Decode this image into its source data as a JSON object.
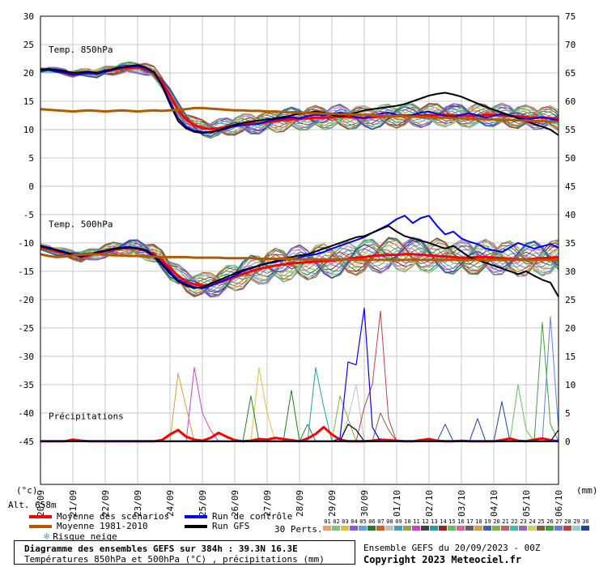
{
  "chart_data": {
    "type": "line",
    "title": "Diagramme des ensembles GEFS sur 384h : 39.3N 16.3E",
    "subtitle": "Températures 850hPa et 500hPa (°C) , précipitations (mm)",
    "run_info": "Ensemble GEFS du 20/09/2023 - 00Z",
    "copyright": "Copyright 2023 Meteociel.fr",
    "altitude_label": "Alt. 658m",
    "left_axis_unit": "(°c)",
    "right_axis_unit": "(mm)",
    "x_dates": [
      "20/09",
      "21/09",
      "22/09",
      "23/09",
      "24/09",
      "25/09",
      "26/09",
      "27/09",
      "28/09",
      "29/09",
      "30/09",
      "01/10",
      "02/10",
      "03/10",
      "04/10",
      "05/10",
      "06/10"
    ],
    "left_ticks": [
      30,
      25,
      20,
      15,
      10,
      5,
      0,
      -5,
      -10,
      -15,
      -20,
      -25,
      -30,
      -35,
      -40,
      -45
    ],
    "right_ticks": [
      75,
      70,
      65,
      60,
      55,
      50,
      45,
      40,
      35,
      30,
      25,
      20,
      15,
      10,
      5,
      0
    ],
    "panel_labels": {
      "t850": "Temp. 850hPa",
      "t500": "Temp. 500hPa",
      "precip": "Précipitations"
    },
    "ylim": [
      -45,
      30
    ],
    "grid": true,
    "time_hours_step": 6,
    "series": [
      {
        "name": "Moyenne des scénarios",
        "color": "#ff0000",
        "t850": [
          20.5,
          20.6,
          20.4,
          20.2,
          19.8,
          20.0,
          20.1,
          19.9,
          20.3,
          20.5,
          20.8,
          20.9,
          21.0,
          20.6,
          20.0,
          18.5,
          16.0,
          13.5,
          11.8,
          10.8,
          10.3,
          10.1,
          10.2,
          10.5,
          10.8,
          10.9,
          11.0,
          11.1,
          11.3,
          11.5,
          11.7,
          11.8,
          11.9,
          12.0,
          12.1,
          12.1,
          12.2,
          12.3,
          12.2,
          12.1,
          12.1,
          12.2,
          12.3,
          12.4,
          12.4,
          12.5,
          12.5,
          12.5,
          12.5,
          12.6,
          12.6,
          12.5,
          12.5,
          12.4,
          12.5,
          12.6,
          12.6,
          12.5,
          12.4,
          12.3,
          12.2,
          12.1,
          12.1,
          12.0,
          11.9
        ],
        "t500": [
          -10.8,
          -11.0,
          -11.5,
          -11.8,
          -12.0,
          -12.5,
          -12.2,
          -11.8,
          -11.5,
          -11.2,
          -11.0,
          -10.9,
          -11.0,
          -11.3,
          -12.0,
          -13.0,
          -14.5,
          -15.8,
          -16.8,
          -17.3,
          -17.5,
          -17.4,
          -17.0,
          -16.5,
          -16.0,
          -15.5,
          -15.0,
          -14.6,
          -14.3,
          -14.0,
          -13.8,
          -13.6,
          -13.5,
          -13.4,
          -13.3,
          -13.2,
          -13.1,
          -13.0,
          -12.8,
          -12.6,
          -12.5,
          -12.3,
          -12.2,
          -12.1,
          -12.1,
          -12.0,
          -12.0,
          -12.1,
          -12.2,
          -12.3,
          -12.4,
          -12.5,
          -12.6,
          -12.6,
          -12.5,
          -12.5,
          -12.6,
          -12.7,
          -12.8,
          -12.9,
          -12.9,
          -12.8,
          -12.7,
          -12.6,
          -12.5
        ],
        "precip": [
          0,
          0,
          0,
          0,
          0.3,
          0.1,
          0,
          0,
          0,
          0,
          0,
          0,
          0,
          0,
          0,
          0.2,
          1.2,
          2.0,
          0.8,
          0.3,
          0.1,
          0.6,
          1.5,
          0.8,
          0.2,
          0,
          0.1,
          0.4,
          0.3,
          0.6,
          0.4,
          0.2,
          0,
          0.5,
          1.3,
          2.5,
          1.2,
          0.3,
          0,
          0,
          0,
          0.1,
          0.3,
          0.2,
          0.1,
          0,
          0,
          0.2,
          0.4,
          0.1,
          0,
          0,
          0.1,
          0,
          0,
          0,
          0,
          0.2,
          0.5,
          0.1,
          0,
          0.3,
          0.5,
          0.2,
          0
        ]
      },
      {
        "name": "Run de contrôle",
        "color": "#0000ff",
        "t850": [
          20.3,
          20.5,
          20.2,
          20.0,
          19.6,
          19.8,
          20.0,
          19.8,
          20.2,
          20.6,
          20.9,
          21.1,
          21.2,
          20.8,
          20.1,
          18.0,
          15.0,
          12.0,
          10.5,
          9.8,
          9.6,
          9.5,
          9.8,
          10.2,
          10.6,
          10.8,
          10.9,
          11.0,
          11.5,
          11.8,
          12.0,
          12.2,
          12.0,
          12.4,
          12.6,
          12.5,
          12.8,
          13.0,
          12.6,
          12.2,
          12.0,
          12.4,
          12.8,
          13.0,
          12.6,
          12.2,
          12.6,
          13.0,
          13.2,
          12.8,
          12.4,
          12.2,
          12.6,
          12.9,
          12.5,
          12.1,
          12.4,
          12.8,
          12.5,
          12.1,
          11.8,
          12.0,
          12.2,
          11.9,
          11.6
        ],
        "t500": [
          -10.5,
          -10.8,
          -11.2,
          -11.6,
          -12.0,
          -12.3,
          -12.0,
          -11.6,
          -11.3,
          -11.0,
          -10.8,
          -10.7,
          -10.9,
          -11.2,
          -12.2,
          -13.5,
          -15.0,
          -16.5,
          -17.2,
          -17.8,
          -18.0,
          -17.6,
          -17.0,
          -16.4,
          -15.8,
          -15.0,
          -14.5,
          -14.0,
          -13.6,
          -13.4,
          -13.0,
          -12.8,
          -12.6,
          -12.2,
          -12.0,
          -11.6,
          -11.0,
          -10.5,
          -10.0,
          -9.5,
          -9.0,
          -8.2,
          -7.5,
          -6.8,
          -5.8,
          -5.2,
          -6.5,
          -5.6,
          -5.2,
          -7.0,
          -8.5,
          -8.0,
          -9.2,
          -9.8,
          -10.2,
          -11.0,
          -11.3,
          -11.6,
          -10.8,
          -10.0,
          -10.5,
          -11.0,
          -10.6,
          -10.2,
          -10.8
        ],
        "precip": [
          0,
          0,
          0,
          0,
          0,
          0,
          0,
          0,
          0,
          0,
          0,
          0,
          0,
          0,
          0,
          0,
          0,
          0,
          0,
          0,
          0,
          0,
          0,
          0,
          0,
          0,
          0,
          0,
          0,
          0,
          0,
          0,
          0,
          0,
          0,
          0,
          0,
          0,
          0,
          0,
          0,
          0,
          0,
          0,
          0,
          0,
          0,
          0,
          0,
          0,
          0,
          0,
          0,
          0,
          0,
          0,
          0,
          0,
          0,
          0,
          0,
          0,
          0,
          0,
          0
        ]
      },
      {
        "name": "Run GFS",
        "color": "#000000",
        "t850": [
          20.6,
          20.7,
          20.5,
          20.3,
          20.0,
          20.1,
          20.2,
          20.0,
          20.4,
          20.7,
          21.0,
          21.2,
          21.4,
          21.0,
          20.2,
          17.8,
          14.5,
          11.5,
          10.2,
          9.6,
          9.4,
          9.6,
          9.9,
          10.4,
          10.8,
          11.2,
          11.4,
          11.6,
          11.8,
          12.0,
          12.2,
          12.5,
          12.8,
          13.0,
          13.2,
          13.0,
          12.6,
          12.3,
          12.6,
          13.0,
          13.4,
          13.6,
          13.8,
          14.0,
          14.2,
          14.5,
          15.0,
          15.5,
          16.0,
          16.3,
          16.5,
          16.2,
          15.8,
          15.2,
          14.6,
          14.0,
          13.5,
          13.0,
          12.5,
          12.0,
          11.5,
          11.0,
          10.5,
          10.0,
          9.0
        ],
        "t500": [
          -10.6,
          -10.9,
          -11.3,
          -11.7,
          -12.1,
          -12.4,
          -12.1,
          -11.7,
          -11.4,
          -11.1,
          -10.9,
          -10.8,
          -11.0,
          -11.4,
          -12.4,
          -13.8,
          -15.4,
          -16.8,
          -17.5,
          -18.0,
          -17.8,
          -17.2,
          -16.6,
          -16.0,
          -15.4,
          -14.8,
          -14.4,
          -14.0,
          -13.6,
          -13.2,
          -12.8,
          -12.5,
          -12.2,
          -12.0,
          -11.5,
          -11.0,
          -10.5,
          -10.0,
          -9.5,
          -9.0,
          -8.8,
          -8.2,
          -7.6,
          -7.0,
          -8.0,
          -8.8,
          -9.2,
          -9.6,
          -10.0,
          -10.5,
          -11.0,
          -10.5,
          -11.5,
          -12.5,
          -13.0,
          -13.5,
          -14.0,
          -14.5,
          -15.0,
          -15.5,
          -15.0,
          -15.8,
          -16.5,
          -17.0,
          -19.5
        ],
        "precip": [
          0,
          0,
          0,
          0,
          0,
          0,
          0,
          0,
          0,
          0,
          0,
          0,
          0,
          0,
          0,
          0,
          0,
          0,
          0,
          0,
          0,
          0,
          0,
          0,
          0,
          0,
          0,
          0,
          0,
          0,
          0,
          0,
          0,
          0,
          0,
          0,
          0,
          0,
          0,
          0,
          0,
          0,
          0,
          0,
          0,
          0,
          0,
          0,
          0,
          0,
          0,
          0,
          0,
          0,
          0,
          0,
          0,
          0,
          0,
          0,
          0,
          0,
          0,
          0,
          0
        ]
      },
      {
        "name": "Moyenne 1981-2010",
        "color": "#b35a00",
        "t850": [
          13.6,
          13.5,
          13.4,
          13.3,
          13.2,
          13.3,
          13.4,
          13.3,
          13.2,
          13.3,
          13.4,
          13.3,
          13.2,
          13.3,
          13.4,
          13.3,
          13.4,
          13.5,
          13.6,
          13.8,
          13.8,
          13.7,
          13.6,
          13.5,
          13.4,
          13.4,
          13.3,
          13.3,
          13.2,
          13.2,
          13.1,
          13.0,
          13.0,
          12.9,
          12.9,
          12.8,
          12.8,
          12.7,
          12.7,
          12.6,
          12.6,
          12.5,
          12.5,
          12.4,
          12.4,
          12.3,
          12.3,
          12.2,
          12.2,
          12.1,
          12.1,
          12.0,
          12.0,
          11.9,
          11.9,
          11.8,
          11.8,
          11.7,
          11.7,
          11.6,
          11.6,
          11.5,
          11.5,
          11.4,
          11.4
        ],
        "t500": [
          -12.0,
          -12.3,
          -12.5,
          -12.4,
          -12.2,
          -12.1,
          -12.0,
          -12.0,
          -12.1,
          -12.2,
          -12.2,
          -12.3,
          -12.3,
          -12.4,
          -12.4,
          -12.5,
          -12.5,
          -12.5,
          -12.5,
          -12.6,
          -12.6,
          -12.6,
          -12.6,
          -12.7,
          -12.7,
          -12.7,
          -12.7,
          -12.8,
          -12.8,
          -12.8,
          -12.8,
          -12.8,
          -12.9,
          -12.9,
          -12.9,
          -12.9,
          -12.9,
          -12.9,
          -12.9,
          -13.0,
          -13.0,
          -13.0,
          -13.0,
          -13.0,
          -13.0,
          -13.0,
          -13.0,
          -13.0,
          -13.0,
          -13.0,
          -13.0,
          -13.0,
          -13.0,
          -13.0,
          -13.0,
          -13.0,
          -13.0,
          -13.0,
          -13.0,
          -13.0,
          -13.0,
          -13.0,
          -13.0,
          -13.0,
          -13.0
        ],
        "precip": []
      }
    ],
    "perturbations": {
      "label": "30 Perts.",
      "count": 30,
      "numbers": [
        "01",
        "02",
        "03",
        "04",
        "05",
        "06",
        "07",
        "08",
        "09",
        "10",
        "11",
        "12",
        "13",
        "14",
        "15",
        "16",
        "17",
        "18",
        "19",
        "20",
        "21",
        "22",
        "23",
        "24",
        "25",
        "26",
        "27",
        "28",
        "29",
        "30"
      ],
      "colors": [
        "#e8a070",
        "#80c080",
        "#e0c040",
        "#8060d0",
        "#60a0e0",
        "#208020",
        "#d06020",
        "#c0c0c0",
        "#40a0c0",
        "#a0a040",
        "#d040d0",
        "#404040",
        "#20a0a0",
        "#a02020",
        "#60c060",
        "#e060a0",
        "#606060",
        "#d0a040",
        "#4060c0",
        "#80b040",
        "#c06060",
        "#40c0a0",
        "#a060c0",
        "#d0d060",
        "#806040",
        "#40a040",
        "#6080e0",
        "#c04040",
        "#90d0d0",
        "#2040a0"
      ],
      "precip_spikes": [
        {
          "member": "03",
          "spikes": [
            [
              27,
              13
            ],
            [
              28,
              5
            ]
          ]
        },
        {
          "member": "06",
          "spikes": [
            [
              26,
              8
            ],
            [
              31,
              9
            ],
            [
              33,
              3
            ]
          ]
        },
        {
          "member": "08",
          "spikes": [
            [
              38,
              4
            ],
            [
              39,
              10
            ]
          ]
        },
        {
          "member": "11",
          "spikes": [
            [
              19,
              13
            ],
            [
              20,
              5
            ],
            [
              21,
              2
            ]
          ]
        },
        {
          "member": "13",
          "spikes": [
            [
              34,
              13
            ],
            [
              35,
              6
            ]
          ]
        },
        {
          "member": "15",
          "spikes": [
            [
              59,
              10
            ],
            [
              60,
              2
            ]
          ]
        },
        {
          "member": "18",
          "spikes": [
            [
              17,
              12
            ],
            [
              18,
              6
            ]
          ]
        },
        {
          "member": "20",
          "spikes": [
            [
              37,
              8
            ],
            [
              38,
              4
            ]
          ]
        },
        {
          "member": "25",
          "spikes": [
            [
              42,
              5
            ],
            [
              43,
              2
            ]
          ]
        },
        {
          "member": "26",
          "spikes": [
            [
              62,
              21
            ],
            [
              63,
              3
            ]
          ]
        },
        {
          "member": "27",
          "spikes": [
            [
              63,
              22
            ],
            [
              64,
              2
            ]
          ]
        },
        {
          "member": "28",
          "spikes": [
            [
              40,
              6
            ],
            [
              41,
              10
            ],
            [
              42,
              23
            ],
            [
              43,
              4
            ]
          ]
        },
        {
          "member": "30",
          "spikes": [
            [
              50,
              3
            ],
            [
              54,
              4
            ],
            [
              57,
              7
            ]
          ]
        }
      ]
    }
  },
  "legend": {
    "mean_label": "Moyenne des scénarios",
    "control_label": "Run de contrôle",
    "clim_label": "Moyenne 1981-2010",
    "gfs_label": "Run GFS",
    "snow_label": "Risque neige",
    "snow_icon": "snowflake-icon"
  }
}
